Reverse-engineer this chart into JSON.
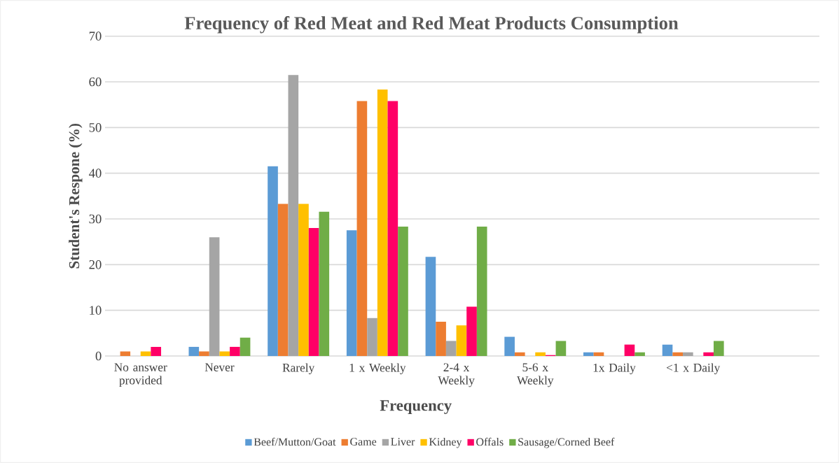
{
  "chart_data": {
    "type": "bar",
    "title": "Frequency of Red Meat and Red Meat Products Consumption",
    "xlabel": "Frequency",
    "ylabel": "Student's Respone (%)",
    "categories": [
      "No answer provided",
      "Never",
      "Rarely",
      "1 x Weekly",
      "2-4 x Weekly",
      "5-6 x Weekly",
      "1x  Daily",
      "<1 x Daily"
    ],
    "series": [
      {
        "name": "Beef/Mutton/Goat",
        "color": "#5b9bd5",
        "values": [
          0,
          2,
          41.5,
          27.5,
          21.7,
          4.2,
          0.8,
          2.5
        ]
      },
      {
        "name": "Game",
        "color": "#ed7d31",
        "values": [
          1,
          1,
          33.3,
          55.8,
          7.5,
          0.8,
          0.8,
          0.8
        ]
      },
      {
        "name": "Liver",
        "color": "#a5a5a5",
        "values": [
          0,
          26,
          61.5,
          8.3,
          3.3,
          0,
          0,
          0.8
        ]
      },
      {
        "name": "Kidney",
        "color": "#ffc000",
        "values": [
          1,
          1,
          33.3,
          58.3,
          6.7,
          0.8,
          0,
          0
        ]
      },
      {
        "name": "Offals",
        "color": "#ff0066",
        "values": [
          2,
          2,
          28,
          55.8,
          10.8,
          0.2,
          2.5,
          0.8
        ]
      },
      {
        "name": "Sausage/Corned Beef",
        "color": "#70ad47",
        "values": [
          0,
          4,
          31.6,
          28.3,
          28.3,
          3.3,
          0.8,
          3.3
        ]
      }
    ],
    "ylim": [
      0,
      70
    ],
    "yticks": [
      0,
      10,
      20,
      30,
      40,
      50,
      60,
      70
    ],
    "grid": "y",
    "legend": "bottom"
  }
}
